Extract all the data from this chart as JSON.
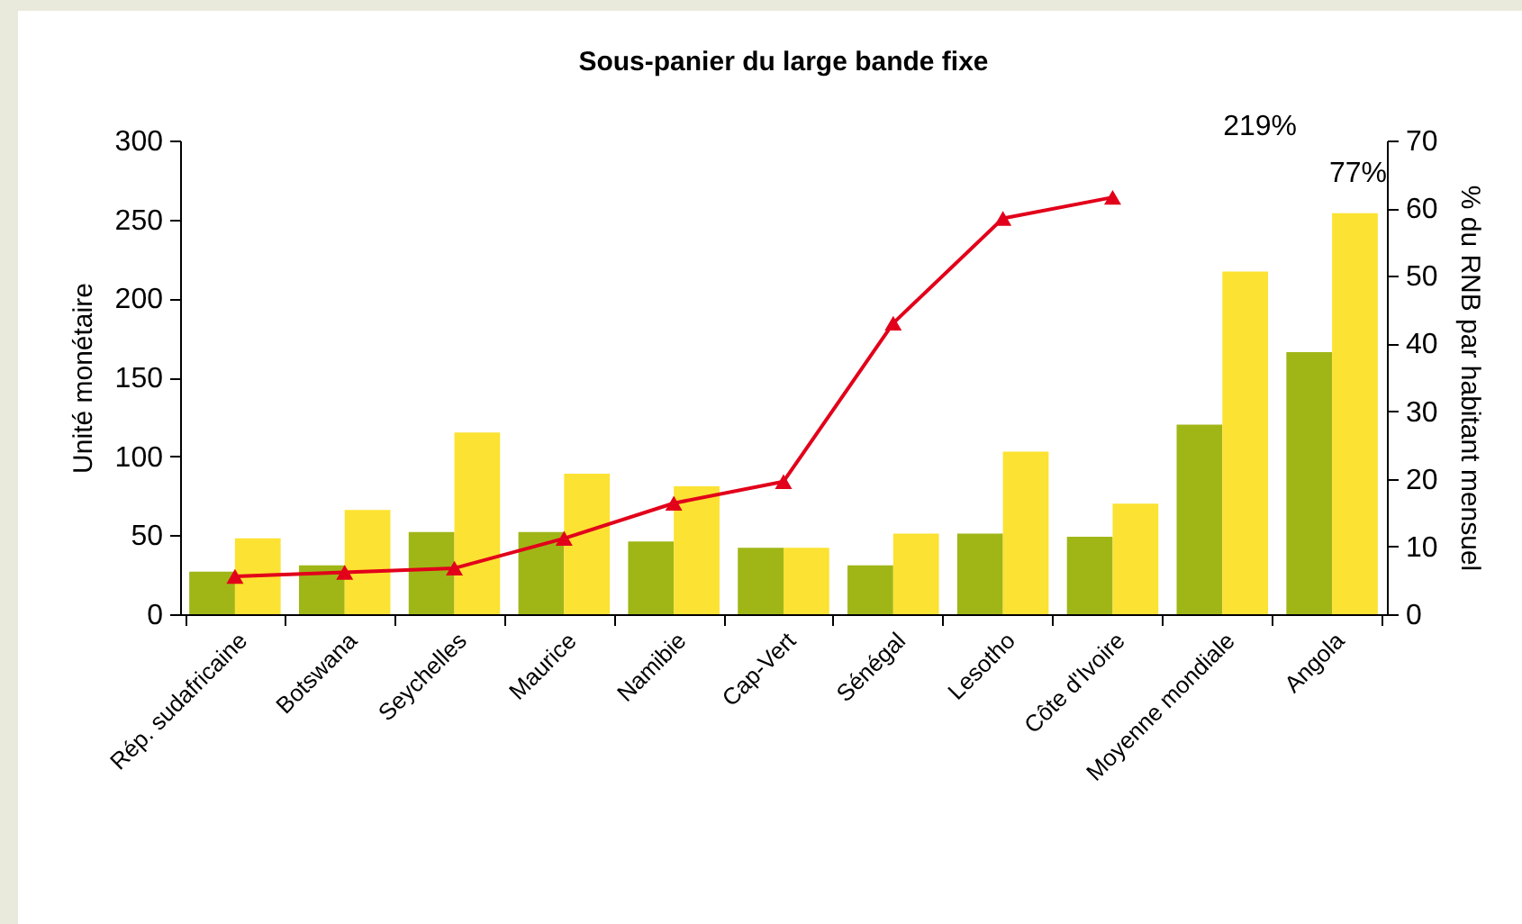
{
  "chart_data": {
    "type": "bar",
    "title": "Sous-panier du large bande fixe",
    "ylabel": "Unité monétaire",
    "y2label": "% du RNB par habitant mensuel",
    "categories": [
      "Rép. sudafricaine",
      "Botswana",
      "Seychelles",
      "Maurice",
      "Namibie",
      "Cap-Vert",
      "Sénégal",
      "Lesotho",
      "Côte d'Ivoire",
      "Moyenne mondiale",
      "Angola"
    ],
    "series": [
      {
        "color": "#a0b617",
        "values": [
          27,
          31,
          52,
          52,
          46,
          42,
          31,
          51,
          49,
          120,
          166
        ]
      },
      {
        "color": "#fce232",
        "values": [
          48,
          66,
          115,
          89,
          81,
          42,
          51,
          103,
          70,
          217,
          254
        ]
      },
      {
        "type": "line",
        "axis": "y2",
        "color": "#e2001a",
        "marker": "triangle",
        "values": [
          5.6,
          6.2,
          6.8,
          11.2,
          16.4,
          19.6,
          43,
          58.5,
          61.6,
          null,
          null
        ]
      }
    ],
    "ylim": [
      0,
      300
    ],
    "yticks": [
      0,
      50,
      100,
      150,
      200,
      250,
      300
    ],
    "y2lim": [
      0,
      70
    ],
    "y2ticks": [
      0,
      10,
      20,
      30,
      40,
      50,
      60,
      70
    ],
    "annotations": [
      "219%",
      "77%"
    ],
    "grid": false,
    "legend": false
  }
}
